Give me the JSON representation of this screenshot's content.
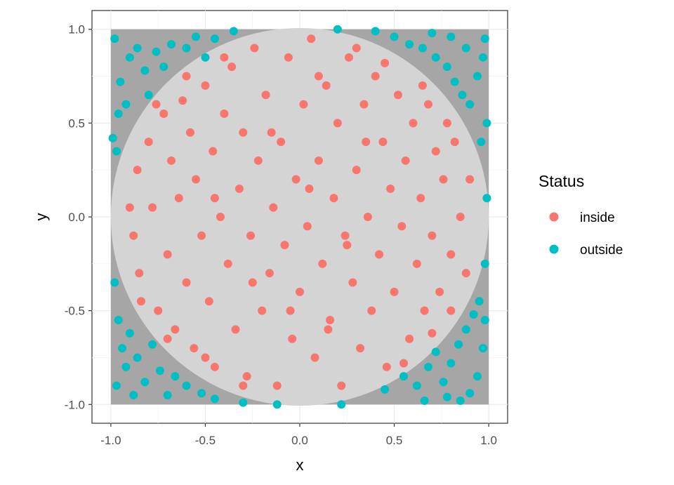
{
  "chart_data": {
    "type": "scatter",
    "title": "",
    "xlabel": "x",
    "ylabel": "y",
    "xlim": [
      -1.1,
      1.1
    ],
    "ylim": [
      -1.1,
      1.1
    ],
    "x_ticks": [
      -1.0,
      -0.5,
      0.0,
      0.5,
      1.0
    ],
    "y_ticks": [
      -1.0,
      -0.5,
      0.0,
      0.5,
      1.0
    ],
    "x_tick_labels": [
      "-1.0",
      "-0.5",
      "0.0",
      "0.5",
      "1.0"
    ],
    "y_tick_labels": [
      "-1.0",
      "-0.5",
      "0.0",
      "0.5",
      "1.0"
    ],
    "grid": true,
    "background_square": {
      "xmin": -1,
      "xmax": 1,
      "ymin": -1,
      "ymax": 1,
      "color": "#a6a6a6"
    },
    "background_circle": {
      "cx": 0,
      "cy": 0,
      "r": 1,
      "color": "#d4d4d4"
    },
    "legend": {
      "title": "Status",
      "placement": "right",
      "entries": [
        {
          "label": "inside",
          "color": "#F8766D"
        },
        {
          "label": "outside",
          "color": "#00BFC4"
        }
      ]
    },
    "series": [
      {
        "name": "inside",
        "color": "#F8766D",
        "points": [
          [
            -0.88,
            -0.1
          ],
          [
            -0.85,
            -0.3
          ],
          [
            -0.86,
            0.25
          ],
          [
            -0.8,
            0.4
          ],
          [
            -0.78,
            0.05
          ],
          [
            -0.75,
            -0.5
          ],
          [
            -0.72,
            0.55
          ],
          [
            -0.7,
            -0.2
          ],
          [
            -0.68,
            0.3
          ],
          [
            -0.66,
            -0.6
          ],
          [
            -0.64,
            0.1
          ],
          [
            -0.62,
            0.62
          ],
          [
            -0.6,
            -0.35
          ],
          [
            -0.58,
            0.45
          ],
          [
            -0.56,
            -0.7
          ],
          [
            -0.55,
            0.2
          ],
          [
            -0.52,
            -0.1
          ],
          [
            -0.5,
            0.7
          ],
          [
            -0.48,
            -0.45
          ],
          [
            -0.46,
            0.35
          ],
          [
            -0.45,
            -0.8
          ],
          [
            -0.42,
            0.0
          ],
          [
            -0.4,
            0.55
          ],
          [
            -0.38,
            -0.25
          ],
          [
            -0.36,
            0.8
          ],
          [
            -0.34,
            -0.6
          ],
          [
            -0.32,
            0.15
          ],
          [
            -0.3,
            0.45
          ],
          [
            -0.28,
            -0.85
          ],
          [
            -0.26,
            -0.1
          ],
          [
            -0.24,
            0.9
          ],
          [
            -0.22,
            0.3
          ],
          [
            -0.2,
            -0.5
          ],
          [
            -0.18,
            0.65
          ],
          [
            -0.16,
            -0.3
          ],
          [
            -0.14,
            0.05
          ],
          [
            -0.12,
            -0.9
          ],
          [
            -0.1,
            0.4
          ],
          [
            -0.08,
            -0.15
          ],
          [
            -0.06,
            0.85
          ],
          [
            -0.04,
            -0.65
          ],
          [
            -0.02,
            0.2
          ],
          [
            0.0,
            -0.4
          ],
          [
            0.02,
            0.6
          ],
          [
            0.04,
            -0.05
          ],
          [
            0.06,
            0.95
          ],
          [
            0.08,
            -0.75
          ],
          [
            0.1,
            0.3
          ],
          [
            0.12,
            -0.25
          ],
          [
            0.14,
            0.7
          ],
          [
            0.16,
            -0.55
          ],
          [
            0.18,
            0.1
          ],
          [
            0.2,
            0.5
          ],
          [
            0.22,
            -0.9
          ],
          [
            0.24,
            -0.1
          ],
          [
            0.26,
            0.85
          ],
          [
            0.28,
            -0.35
          ],
          [
            0.3,
            0.25
          ],
          [
            0.32,
            -0.7
          ],
          [
            0.34,
            0.6
          ],
          [
            0.36,
            0.0
          ],
          [
            0.38,
            -0.5
          ],
          [
            0.4,
            0.75
          ],
          [
            0.42,
            -0.2
          ],
          [
            0.44,
            0.4
          ],
          [
            0.46,
            -0.8
          ],
          [
            0.48,
            0.15
          ],
          [
            0.5,
            -0.4
          ],
          [
            0.52,
            0.65
          ],
          [
            0.54,
            -0.05
          ],
          [
            0.56,
            0.3
          ],
          [
            0.58,
            -0.65
          ],
          [
            0.6,
            0.5
          ],
          [
            0.62,
            -0.25
          ],
          [
            0.64,
            0.1
          ],
          [
            0.66,
            -0.5
          ],
          [
            0.68,
            0.6
          ],
          [
            0.7,
            -0.1
          ],
          [
            0.72,
            0.35
          ],
          [
            0.74,
            -0.4
          ],
          [
            0.76,
            0.2
          ],
          [
            0.8,
            -0.2
          ],
          [
            0.82,
            0.4
          ],
          [
            0.85,
            0.0
          ],
          [
            0.88,
            -0.3
          ],
          [
            0.9,
            0.2
          ],
          [
            -0.9,
            0.05
          ],
          [
            -0.84,
            -0.45
          ],
          [
            -0.76,
            0.6
          ],
          [
            -0.7,
            -0.65
          ],
          [
            -0.6,
            0.75
          ],
          [
            -0.5,
            -0.75
          ],
          [
            -0.4,
            0.85
          ],
          [
            -0.3,
            -0.9
          ],
          [
            0.3,
            0.9
          ],
          [
            0.45,
            0.82
          ],
          [
            0.55,
            -0.78
          ],
          [
            0.65,
            0.7
          ],
          [
            0.7,
            -0.62
          ],
          [
            0.78,
            0.5
          ],
          [
            0.8,
            -0.5
          ],
          [
            -0.15,
            0.45
          ],
          [
            0.05,
            0.15
          ],
          [
            -0.25,
            -0.35
          ],
          [
            0.15,
            -0.6
          ],
          [
            0.35,
            0.4
          ],
          [
            -0.45,
            0.1
          ],
          [
            0.25,
            -0.15
          ],
          [
            -0.05,
            -0.5
          ],
          [
            0.1,
            0.75
          ]
        ]
      },
      {
        "name": "outside",
        "color": "#00BFC4",
        "points": [
          [
            -0.98,
            0.95
          ],
          [
            -0.95,
            0.72
          ],
          [
            -0.92,
            0.6
          ],
          [
            -0.9,
            0.85
          ],
          [
            -0.86,
            0.9
          ],
          [
            -0.82,
            0.78
          ],
          [
            -0.8,
            0.65
          ],
          [
            -0.76,
            0.88
          ],
          [
            -0.72,
            0.8
          ],
          [
            -0.68,
            0.92
          ],
          [
            -0.6,
            0.9
          ],
          [
            -0.55,
            0.96
          ],
          [
            -0.5,
            0.85
          ],
          [
            -0.45,
            0.95
          ],
          [
            -0.35,
            0.99
          ],
          [
            -0.99,
            0.42
          ],
          [
            -0.97,
            0.35
          ],
          [
            -0.96,
            0.55
          ],
          [
            0.4,
            0.99
          ],
          [
            0.5,
            0.96
          ],
          [
            0.58,
            0.92
          ],
          [
            0.65,
            0.9
          ],
          [
            0.72,
            0.85
          ],
          [
            0.78,
            0.8
          ],
          [
            0.82,
            0.72
          ],
          [
            0.86,
            0.65
          ],
          [
            0.9,
            0.6
          ],
          [
            0.94,
            0.75
          ],
          [
            0.97,
            0.85
          ],
          [
            0.98,
            0.95
          ],
          [
            0.99,
            0.5
          ],
          [
            0.96,
            0.4
          ],
          [
            0.88,
            0.9
          ],
          [
            0.8,
            0.96
          ],
          [
            0.7,
            0.98
          ],
          [
            0.2,
            1.0
          ],
          [
            -0.98,
            -0.35
          ],
          [
            -0.96,
            -0.55
          ],
          [
            -0.94,
            -0.7
          ],
          [
            -0.92,
            -0.8
          ],
          [
            -0.9,
            -0.62
          ],
          [
            -0.86,
            -0.75
          ],
          [
            -0.82,
            -0.88
          ],
          [
            -0.78,
            -0.68
          ],
          [
            -0.74,
            -0.82
          ],
          [
            -0.7,
            -0.95
          ],
          [
            -0.66,
            -0.85
          ],
          [
            -0.6,
            -0.9
          ],
          [
            -0.52,
            -0.94
          ],
          [
            -0.45,
            -0.97
          ],
          [
            -0.3,
            -0.99
          ],
          [
            -0.12,
            -1.0
          ],
          [
            -0.97,
            -0.9
          ],
          [
            -0.88,
            -0.95
          ],
          [
            0.22,
            -1.0
          ],
          [
            0.45,
            -0.92
          ],
          [
            0.55,
            -0.85
          ],
          [
            0.62,
            -0.9
          ],
          [
            0.68,
            -0.8
          ],
          [
            0.72,
            -0.72
          ],
          [
            0.76,
            -0.88
          ],
          [
            0.8,
            -0.78
          ],
          [
            0.84,
            -0.68
          ],
          [
            0.88,
            -0.6
          ],
          [
            0.92,
            -0.52
          ],
          [
            0.95,
            -0.45
          ],
          [
            0.98,
            -0.55
          ],
          [
            0.97,
            -0.7
          ],
          [
            0.94,
            -0.85
          ],
          [
            0.9,
            -0.94
          ],
          [
            0.85,
            -0.98
          ],
          [
            0.78,
            -0.96
          ],
          [
            0.66,
            -0.98
          ],
          [
            0.99,
            0.1
          ],
          [
            0.98,
            -0.25
          ]
        ]
      }
    ]
  }
}
